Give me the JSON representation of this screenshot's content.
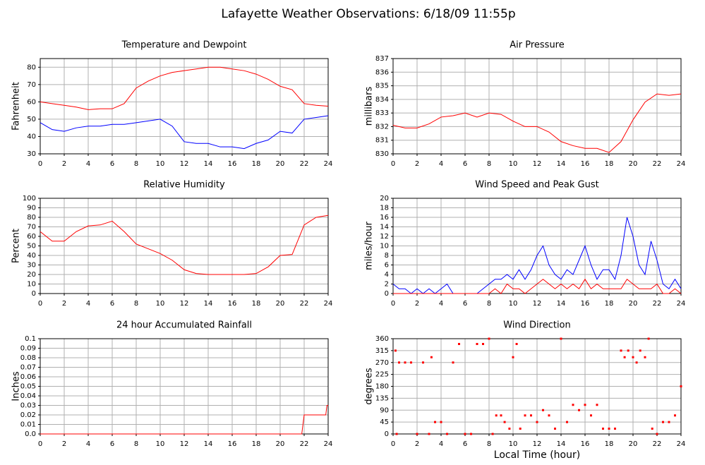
{
  "title": "Lafayette Weather Observations: 6/18/09 11:55p",
  "chart_data": [
    {
      "type": "line",
      "title": "Temperature and Dewpoint",
      "ylabel": "Fahrenheit",
      "x": [
        0,
        1,
        2,
        3,
        4,
        5,
        6,
        7,
        8,
        9,
        10,
        11,
        12,
        13,
        14,
        15,
        16,
        17,
        18,
        19,
        20,
        21,
        22,
        23,
        24
      ],
      "series": [
        {
          "color": "#ff0000",
          "values": [
            60,
            59,
            58,
            57,
            55.5,
            56,
            56,
            59,
            68,
            72,
            75,
            77,
            78,
            79,
            80,
            80,
            79,
            78,
            76,
            73,
            69,
            67,
            59,
            58,
            57.5
          ]
        },
        {
          "color": "#0000ff",
          "values": [
            48,
            44,
            43,
            45,
            46,
            46,
            47,
            47,
            48,
            49,
            50,
            46,
            37,
            36,
            36,
            34,
            34,
            33,
            36,
            38,
            43,
            42,
            50,
            51,
            52
          ]
        }
      ],
      "xlim": [
        0,
        24
      ],
      "xticks": [
        0,
        2,
        4,
        6,
        8,
        10,
        12,
        14,
        16,
        18,
        20,
        22,
        24
      ],
      "ylim": [
        30,
        85
      ],
      "yticks": [
        30,
        40,
        50,
        60,
        70,
        80
      ],
      "grid": true
    },
    {
      "type": "line",
      "title": "Air Pressure",
      "ylabel": "millibars",
      "x": [
        0,
        1,
        2,
        3,
        4,
        5,
        6,
        7,
        8,
        9,
        10,
        11,
        12,
        13,
        14,
        15,
        16,
        17,
        18,
        19,
        20,
        21,
        22,
        23,
        24
      ],
      "series": [
        {
          "color": "#ff0000",
          "values": [
            832.1,
            831.9,
            831.9,
            832.2,
            832.7,
            832.8,
            833,
            832.7,
            833,
            832.9,
            832.4,
            832,
            832,
            831.6,
            830.9,
            830.6,
            830.4,
            830.4,
            830.1,
            830.9,
            832.5,
            833.8,
            834.4,
            834.3,
            834.4
          ]
        }
      ],
      "xlim": [
        0,
        24
      ],
      "xticks": [
        0,
        2,
        4,
        6,
        8,
        10,
        12,
        14,
        16,
        18,
        20,
        22,
        24
      ],
      "ylim": [
        830,
        837
      ],
      "yticks": [
        830,
        831,
        832,
        833,
        834,
        835,
        836,
        837
      ],
      "grid": true
    },
    {
      "type": "line",
      "title": "Relative Humidity",
      "ylabel": "Percent",
      "x": [
        0,
        1,
        2,
        3,
        4,
        5,
        6,
        7,
        8,
        9,
        10,
        11,
        12,
        13,
        14,
        15,
        16,
        17,
        18,
        19,
        20,
        21,
        22,
        23,
        24
      ],
      "series": [
        {
          "color": "#ff0000",
          "values": [
            65,
            55,
            55,
            65,
            71,
            72,
            76,
            65,
            52,
            47,
            42,
            35,
            25,
            21,
            20,
            20,
            20,
            20,
            21,
            28,
            40,
            41,
            72,
            80,
            82
          ]
        }
      ],
      "xlim": [
        0,
        24
      ],
      "xticks": [
        0,
        2,
        4,
        6,
        8,
        10,
        12,
        14,
        16,
        18,
        20,
        22,
        24
      ],
      "ylim": [
        0,
        100
      ],
      "yticks": [
        0,
        10,
        20,
        30,
        40,
        50,
        60,
        70,
        80,
        90,
        100
      ],
      "grid": true
    },
    {
      "type": "line",
      "title": "Wind Speed and Peak Gust",
      "ylabel": "miles/hour",
      "x": [
        0,
        0.5,
        1,
        1.5,
        2,
        2.5,
        3,
        3.5,
        4,
        4.5,
        5,
        5.5,
        6,
        6.5,
        7,
        7.5,
        8,
        8.5,
        9,
        9.5,
        10,
        10.5,
        11,
        11.5,
        12,
        12.5,
        13,
        13.5,
        14,
        14.5,
        15,
        15.5,
        16,
        16.5,
        17,
        17.5,
        18,
        18.5,
        19,
        19.5,
        20,
        20.5,
        21,
        21.5,
        22,
        22.5,
        23,
        23.5,
        24
      ],
      "series": [
        {
          "color": "#0000ff",
          "values": [
            2,
            1,
            1,
            0,
            1,
            0,
            1,
            0,
            1,
            2,
            0,
            0,
            0,
            0,
            0,
            1,
            2,
            3,
            3,
            4,
            3,
            5,
            3,
            5,
            8,
            10,
            6,
            4,
            3,
            5,
            4,
            7,
            10,
            6,
            3,
            5,
            5,
            3,
            8,
            16,
            12,
            6,
            4,
            11,
            7,
            2,
            1,
            3,
            1
          ]
        },
        {
          "color": "#ff0000",
          "values": [
            0,
            0,
            0,
            0,
            0,
            0,
            0,
            0,
            0,
            0,
            0,
            0,
            0,
            0,
            0,
            0,
            0,
            1,
            0,
            2,
            1,
            1,
            0,
            1,
            2,
            3,
            2,
            1,
            2,
            1,
            2,
            1,
            3,
            1,
            2,
            1,
            1,
            1,
            1,
            3,
            2,
            1,
            1,
            1,
            2,
            0,
            0,
            1,
            0
          ]
        }
      ],
      "xlim": [
        0,
        24
      ],
      "xticks": [
        0,
        2,
        4,
        6,
        8,
        10,
        12,
        14,
        16,
        18,
        20,
        22,
        24
      ],
      "ylim": [
        0,
        20
      ],
      "yticks": [
        0,
        2,
        4,
        6,
        8,
        10,
        12,
        14,
        16,
        18,
        20
      ],
      "grid": true
    },
    {
      "type": "line",
      "title": "24 hour Accumulated Rainfall",
      "ylabel": "Inches",
      "x": [
        0,
        21.8,
        21.9,
        22,
        23.8,
        23.9,
        24
      ],
      "series": [
        {
          "color": "#ff0000",
          "values": [
            0,
            0,
            0.01,
            0.02,
            0.02,
            0.03,
            0.03
          ]
        }
      ],
      "xlim": [
        0,
        24
      ],
      "xticks": [
        0,
        2,
        4,
        6,
        8,
        10,
        12,
        14,
        16,
        18,
        20,
        22,
        24
      ],
      "ylim": [
        0,
        0.1
      ],
      "yticks": [
        {
          "value": 0,
          "label": "0.0"
        },
        0.01,
        0.02,
        0.03,
        0.04,
        0.05,
        0.06,
        0.07,
        0.08,
        0.09,
        0.1
      ],
      "grid": true
    },
    {
      "type": "scatter",
      "title": "Wind Direction",
      "ylabel": "degrees",
      "xlabel": "Local Time (hour)",
      "x": [
        0.2,
        0.3,
        0.5,
        1,
        1.5,
        2,
        2.5,
        3,
        3.2,
        3.5,
        4,
        4.5,
        5,
        5.5,
        6,
        6.5,
        7,
        7.5,
        8,
        8.3,
        8.6,
        9,
        9.3,
        9.7,
        10,
        10.3,
        10.6,
        11,
        11.5,
        12,
        12.5,
        13,
        13.5,
        14,
        14.5,
        15,
        15.5,
        16,
        16.5,
        17,
        17.5,
        18,
        18.5,
        19,
        19.3,
        19.6,
        20,
        20.3,
        20.6,
        21,
        21.3,
        21.6,
        22,
        22.5,
        23,
        23.5,
        24
      ],
      "series": [
        {
          "color": "#ff0000",
          "values": [
            315,
            0,
            270,
            270,
            270,
            0,
            270,
            0,
            290,
            45,
            45,
            0,
            270,
            340,
            0,
            0,
            340,
            340,
            360,
            0,
            70,
            70,
            45,
            20,
            290,
            340,
            20,
            70,
            70,
            45,
            90,
            70,
            20,
            360,
            45,
            110,
            90,
            110,
            70,
            110,
            20,
            20,
            20,
            315,
            290,
            315,
            290,
            270,
            315,
            290,
            360,
            20,
            0,
            45,
            45,
            70,
            180
          ]
        }
      ],
      "xlim": [
        0,
        24
      ],
      "xticks": [
        0,
        2,
        4,
        6,
        8,
        10,
        12,
        14,
        16,
        18,
        20,
        22,
        24
      ],
      "ylim": [
        0,
        360
      ],
      "yticks": [
        0,
        45,
        90,
        135,
        180,
        225,
        270,
        315,
        360
      ],
      "grid": true
    }
  ]
}
